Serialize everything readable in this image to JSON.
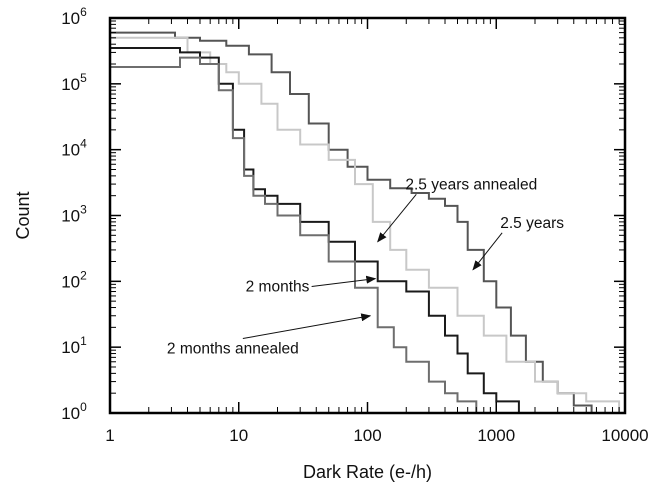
{
  "chart_data": {
    "type": "line",
    "title": "",
    "xlabel": "Dark Rate (e-/h)",
    "ylabel": "Count",
    "x_scale": "log",
    "y_scale": "log",
    "xlim": [
      1,
      10000
    ],
    "ylim": [
      1,
      1000000
    ],
    "grid": false,
    "legend": "none",
    "x_ticks": [
      "1",
      "10",
      "100",
      "1000",
      "10000"
    ],
    "y_ticks": [
      {
        "base": "10",
        "exp": "0"
      },
      {
        "base": "10",
        "exp": "1"
      },
      {
        "base": "10",
        "exp": "2"
      },
      {
        "base": "10",
        "exp": "3"
      },
      {
        "base": "10",
        "exp": "4"
      },
      {
        "base": "10",
        "exp": "5"
      },
      {
        "base": "10",
        "exp": "6"
      }
    ],
    "series": [
      {
        "name": "2.5 years",
        "color": "#555555",
        "x": [
          1,
          2.2,
          3.2,
          5,
          8,
          12,
          18,
          25,
          35,
          50,
          70,
          100,
          150,
          220,
          300,
          400,
          500,
          600,
          800,
          1000,
          1300,
          1700,
          2300,
          3000,
          4000,
          5500
        ],
        "y": [
          600000,
          600000,
          500000,
          450000,
          380000,
          280000,
          150000,
          70000,
          25000,
          10000,
          5500,
          3500,
          2600,
          2200,
          1800,
          1400,
          800,
          300,
          100,
          40,
          15,
          6,
          3,
          2,
          1.3,
          1
        ]
      },
      {
        "name": "2.5 years annealed",
        "color": "#c8c8c8",
        "x": [
          1,
          2.2,
          4,
          6,
          8,
          10,
          15,
          20,
          30,
          50,
          80,
          110,
          150,
          200,
          300,
          500,
          800,
          1200,
          2000,
          3000,
          5000,
          9000
        ],
        "y": [
          500000,
          500000,
          300000,
          200000,
          150000,
          100000,
          50000,
          20000,
          12000,
          7000,
          3000,
          800,
          300,
          150,
          80,
          30,
          15,
          6,
          3,
          2,
          1.5,
          1
        ]
      },
      {
        "name": "2 months",
        "color": "#1a1a1a",
        "x": [
          1,
          2.2,
          3.5,
          5,
          7,
          9,
          11,
          13,
          16,
          20,
          30,
          50,
          80,
          120,
          200,
          300,
          400,
          500,
          600,
          800,
          1000,
          1500
        ],
        "y": [
          350000,
          350000,
          300000,
          250000,
          100000,
          20000,
          5000,
          2500,
          2000,
          1500,
          800,
          400,
          200,
          100,
          70,
          30,
          15,
          8,
          4,
          2,
          1.5,
          1
        ]
      },
      {
        "name": "2 months annealed",
        "color": "#6e6e6e",
        "x": [
          1,
          2.2,
          3.5,
          5,
          7,
          9,
          11,
          13,
          16,
          20,
          30,
          50,
          80,
          120,
          160,
          200,
          300,
          400,
          500,
          700
        ],
        "y": [
          180000,
          180000,
          250000,
          200000,
          80000,
          15000,
          4000,
          2000,
          1500,
          1000,
          500,
          200,
          80,
          20,
          10,
          6,
          3,
          2,
          1.5,
          1
        ]
      }
    ],
    "annotations": [
      {
        "text": "2.5 years annealed",
        "label_at": [
          640,
          2500
        ],
        "arrow_to": [
          120,
          400
        ]
      },
      {
        "text": "2.5 years",
        "label_at": [
          1900,
          650
        ],
        "arrow_to": [
          660,
          150
        ]
      },
      {
        "text": "2 months",
        "label_at": [
          20,
          70
        ],
        "arrow_to": [
          115,
          110
        ]
      },
      {
        "text": "2 months annealed",
        "label_at": [
          9,
          8
        ],
        "arrow_to": [
          105,
          30
        ]
      }
    ]
  }
}
